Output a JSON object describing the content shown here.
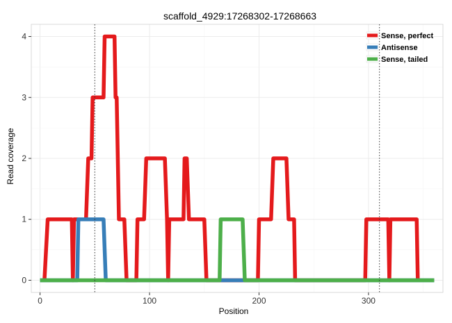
{
  "chart_data": {
    "type": "line",
    "title": "scaffold_4929:17268302-17268663",
    "xlabel": "Position",
    "ylabel": "Read coverage",
    "xlim": [
      -8,
      368
    ],
    "ylim": [
      -0.2,
      4.2
    ],
    "x_ticks": [
      0,
      100,
      200,
      300
    ],
    "y_ticks": [
      0,
      1,
      2,
      3,
      4
    ],
    "grid": true,
    "legend_position": "top-right",
    "vlines": [
      50,
      310
    ],
    "series": [
      {
        "name": "Sense, perfect",
        "color": "#e41a1c",
        "points": [
          [
            4,
            0
          ],
          [
            7,
            1
          ],
          [
            29,
            1
          ],
          [
            30,
            0
          ],
          [
            31,
            1
          ],
          [
            42,
            1
          ],
          [
            44,
            2
          ],
          [
            47,
            2
          ],
          [
            48,
            3
          ],
          [
            58,
            3
          ],
          [
            59,
            4
          ],
          [
            68,
            4
          ],
          [
            69,
            3
          ],
          [
            70,
            3
          ],
          [
            72,
            1
          ],
          [
            77,
            1
          ],
          [
            79,
            0
          ],
          [
            88,
            0
          ],
          [
            89,
            1
          ],
          [
            95,
            1
          ],
          [
            97,
            2
          ],
          [
            114,
            2
          ],
          [
            116,
            1
          ],
          [
            117,
            0
          ],
          [
            118,
            1
          ],
          [
            131,
            1
          ],
          [
            132,
            2
          ],
          [
            134,
            2
          ],
          [
            136,
            1
          ],
          [
            150,
            1
          ],
          [
            152,
            0
          ],
          [
            199,
            0
          ],
          [
            200,
            1
          ],
          [
            211,
            1
          ],
          [
            213,
            2
          ],
          [
            225,
            2
          ],
          [
            227,
            1
          ],
          [
            232,
            1
          ],
          [
            233,
            0
          ],
          [
            297,
            0
          ],
          [
            298,
            1
          ],
          [
            318,
            1
          ],
          [
            319,
            0
          ],
          [
            320,
            1
          ],
          [
            344,
            1
          ],
          [
            345,
            0
          ]
        ]
      },
      {
        "name": "Antisense",
        "color": "#377eb8",
        "points": [
          [
            0,
            0
          ],
          [
            34,
            0
          ],
          [
            35,
            1
          ],
          [
            58,
            1
          ],
          [
            60,
            0
          ],
          [
            360,
            0
          ]
        ]
      },
      {
        "name": "Sense, tailed",
        "color": "#4daf4a",
        "points": [
          [
            0,
            0
          ],
          [
            164,
            0
          ],
          [
            165,
            1
          ],
          [
            185,
            1
          ],
          [
            187,
            0
          ],
          [
            360,
            0
          ]
        ]
      }
    ]
  }
}
